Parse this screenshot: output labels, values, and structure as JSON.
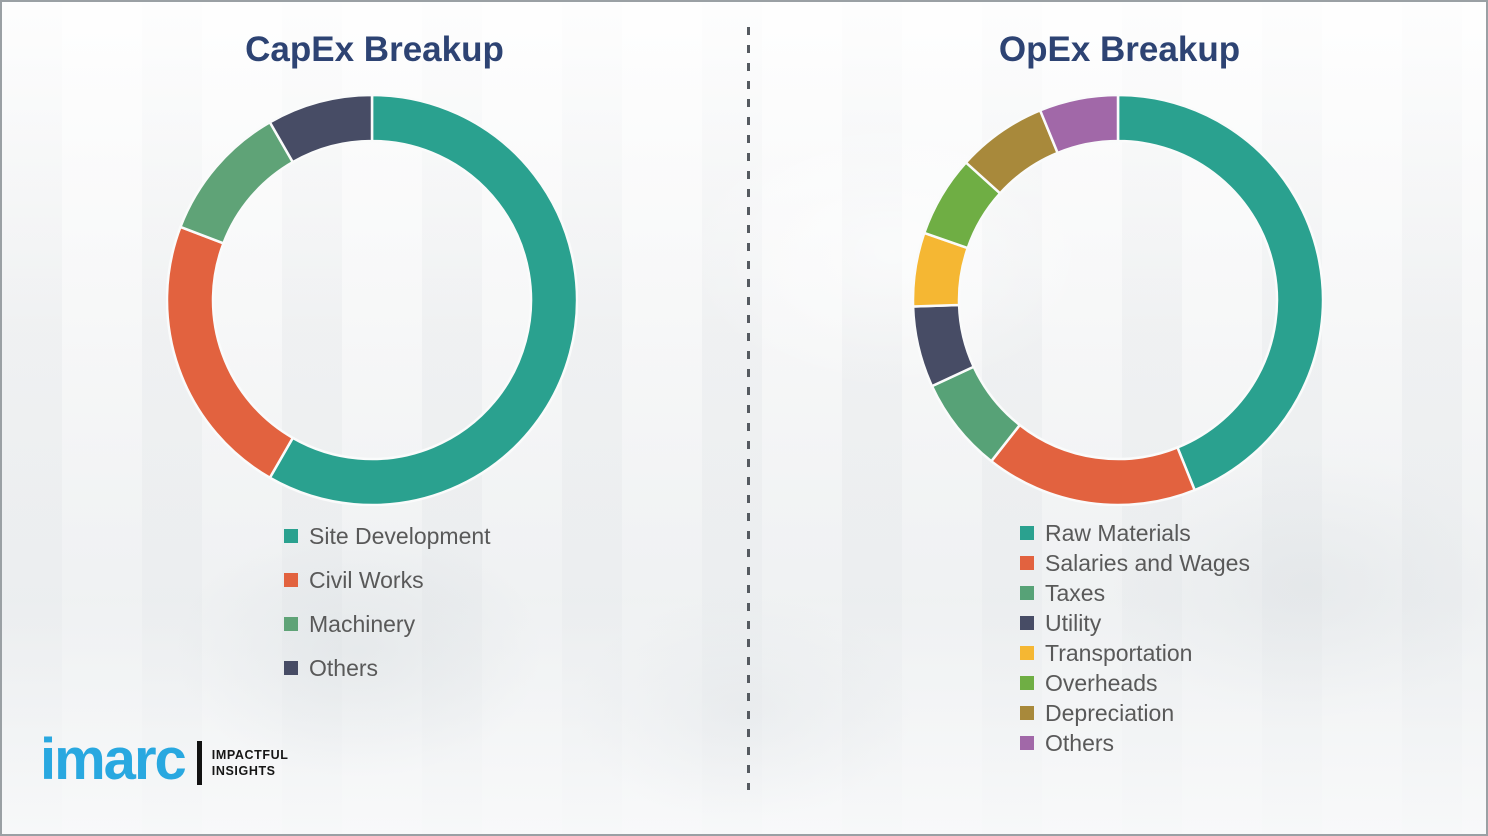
{
  "page": {
    "background_color": "#f4f5f6",
    "border_color": "#9aa0a4",
    "divider_color": "#555a60",
    "title_color": "#2d4373",
    "legend_text_color": "#595959"
  },
  "chart_data": [
    {
      "type": "pie",
      "subtype": "donut",
      "title": "CapEx Breakup",
      "legend_position": "bottom-left",
      "labels": [
        "Site Development",
        "Civil Works",
        "Machinery",
        "Others"
      ],
      "values": [
        58.3,
        22.5,
        10.9,
        8.3
      ],
      "colors": [
        "#2aa18f",
        "#e2623f",
        "#5fa377",
        "#474c65"
      ]
    },
    {
      "type": "pie",
      "subtype": "donut",
      "title": "OpEx Breakup",
      "legend_position": "bottom-left",
      "labels": [
        "Raw Materials",
        "Salaries and Wages",
        "Taxes",
        "Utility",
        "Transportation",
        "Overheads",
        "Depreciation",
        "Others"
      ],
      "values": [
        43.9,
        16.7,
        7.5,
        6.4,
        5.8,
        6.4,
        7.1,
        6.2
      ],
      "colors": [
        "#2aa18f",
        "#e2623f",
        "#57a277",
        "#474c65",
        "#f5b733",
        "#6fae44",
        "#a8893b",
        "#a168a8"
      ]
    }
  ],
  "logo": {
    "brand": "imarc",
    "tagline_line1": "IMPACTFUL",
    "tagline_line2": "INSIGHTS",
    "brand_color": "#29a8e0"
  }
}
